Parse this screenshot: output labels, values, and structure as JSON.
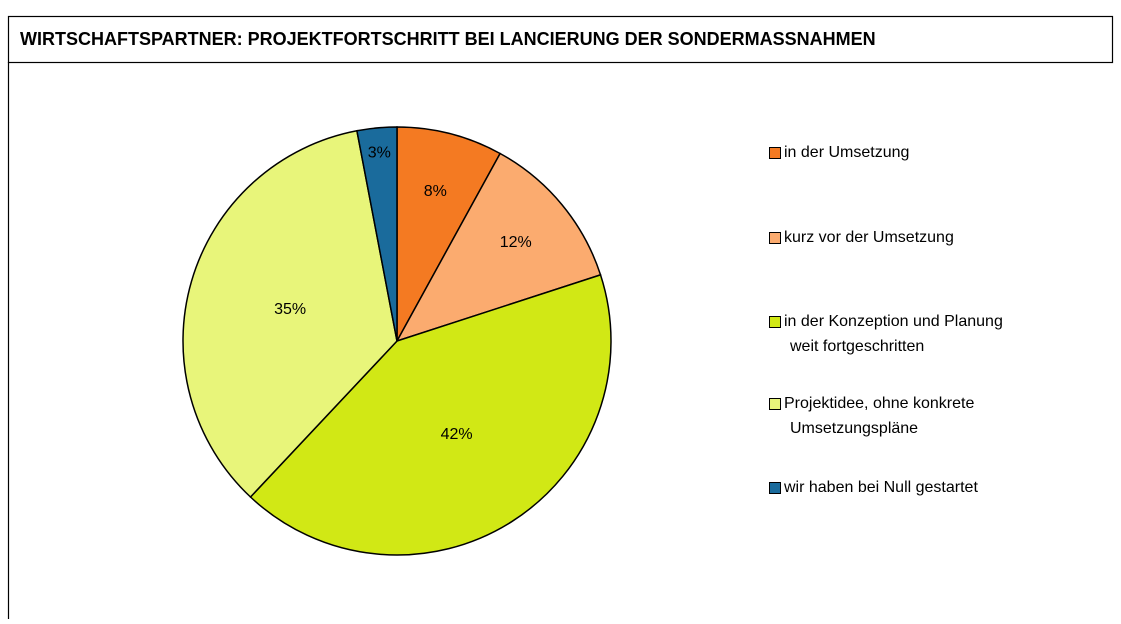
{
  "chart_data": {
    "type": "pie",
    "title": "WIRTSCHAFTSPARTNER: PROJEKTFORTSCHRITT BEI LANCIERUNG DER SONDERMASSNAHMEN",
    "categories": [
      "in der Umsetzung",
      "kurz vor der Umsetzung",
      "in der Konzeption und Planung\nweit fortgeschritten",
      "Projektidee, ohne konkrete\nUmsetzungspläne",
      "wir haben bei Null gestartet"
    ],
    "values": [
      8,
      12,
      42,
      35,
      3
    ],
    "value_labels": [
      "8%",
      "12%",
      "42%",
      "35%",
      "3%"
    ],
    "colors": [
      "#f47a22",
      "#fbab6f",
      "#d1e815",
      "#e8f57a",
      "#1a6b9c"
    ],
    "legend": "right"
  }
}
